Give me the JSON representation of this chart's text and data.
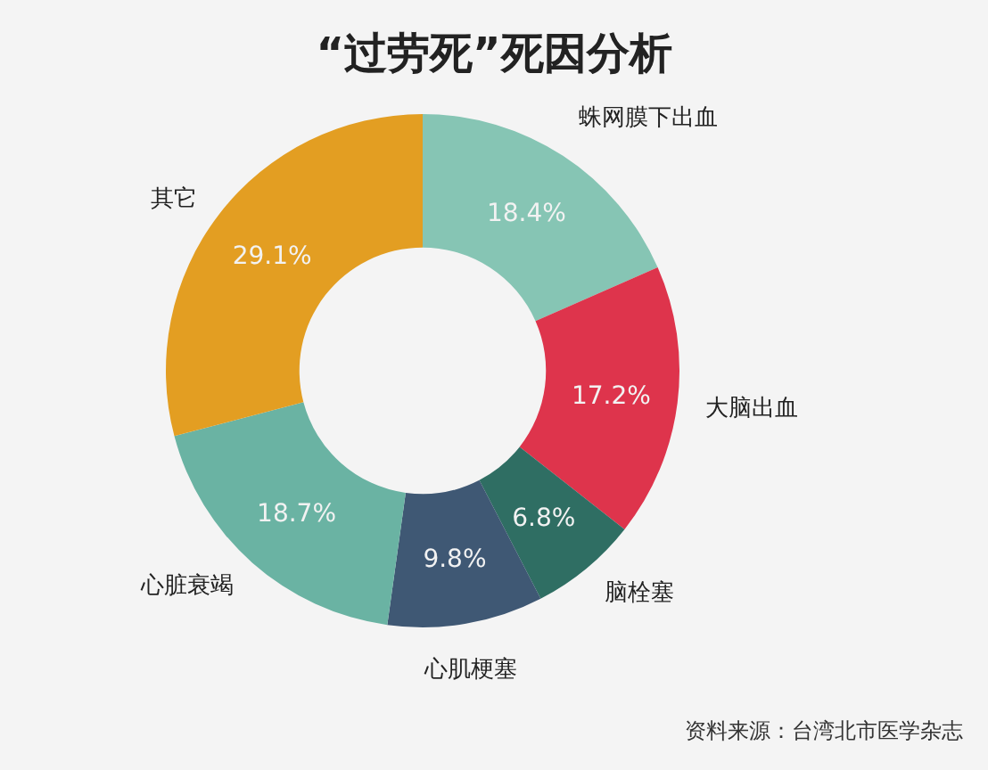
{
  "chart_data": {
    "type": "donut",
    "title": "“过劳死”死因分析",
    "categories": [
      "蛛网膜下出血",
      "大脑出血",
      "脑栓塞",
      "心肌梗塞",
      "心脏衰竭",
      "其它"
    ],
    "values": [
      18.4,
      17.2,
      6.8,
      9.8,
      18.7,
      29.1
    ],
    "value_labels": [
      "18.4%",
      "17.2%",
      "6.8%",
      "9.8%",
      "18.7%",
      "29.1%"
    ],
    "colors": [
      "#86c5b4",
      "#de344c",
      "#2f6e63",
      "#3f5874",
      "#6ab3a3",
      "#e39e22"
    ],
    "annotations": [
      "资料来源：台湾北市医学杂志"
    ]
  }
}
